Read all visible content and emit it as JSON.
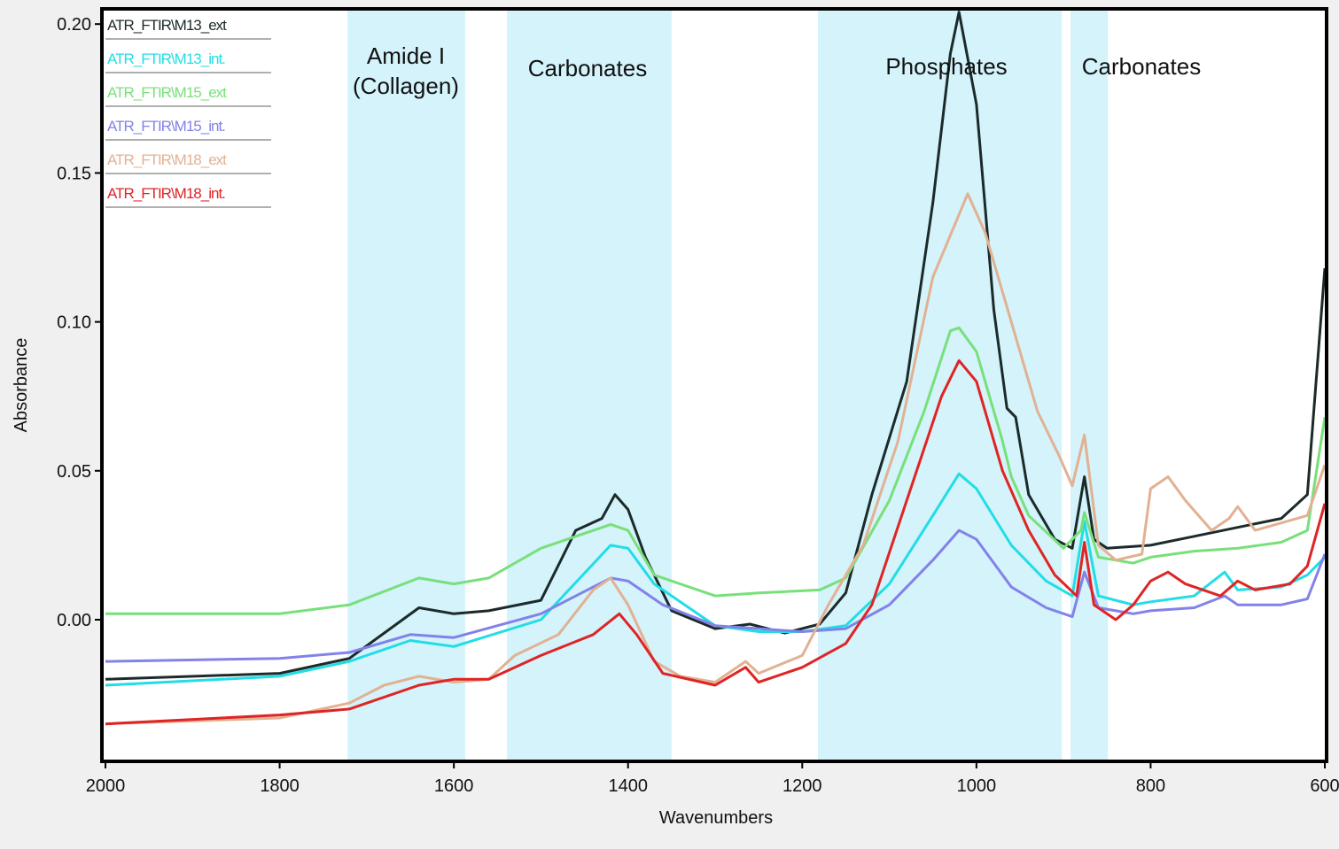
{
  "chart_data": {
    "type": "line",
    "title": "",
    "xlabel": "Wavenumbers",
    "ylabel": "Absorbance",
    "xlim": [
      2000,
      600
    ],
    "ylim": [
      -0.0476,
      0.205
    ],
    "xticks": [
      2000,
      1800,
      1600,
      1400,
      1200,
      1000,
      800,
      600
    ],
    "xtick_labels": [
      "2000",
      "1800",
      "1600",
      "1400",
      "1200",
      "1000",
      "800",
      "600"
    ],
    "yticks": [
      0.0,
      0.05,
      0.1,
      0.15,
      0.2
    ],
    "ytick_labels": [
      "0.00",
      "0.05",
      "0.10",
      "0.15",
      "0.20"
    ],
    "grid": false,
    "legend_position": "top-left",
    "bands": [
      {
        "label": "Amide I",
        "label2": "(Collagen)",
        "from": 1722,
        "to": 1587
      },
      {
        "label": "Carbonates",
        "label2": "",
        "from": 1539,
        "to": 1350
      },
      {
        "label": "Phosphates",
        "label2": "",
        "from": 1182,
        "to": 902
      },
      {
        "label": "Carbonates",
        "label2": "",
        "from": 892,
        "to": 849
      }
    ],
    "band_color": "#d4f3fb",
    "series": [
      {
        "name": "ATR_FTIR\\M13_ext",
        "color": "#1c2a2a",
        "x": [
          2000,
          1800,
          1720,
          1680,
          1640,
          1600,
          1560,
          1500,
          1460,
          1430,
          1415,
          1400,
          1380,
          1350,
          1300,
          1260,
          1220,
          1180,
          1150,
          1120,
          1080,
          1050,
          1030,
          1020,
          1000,
          980,
          965,
          955,
          940,
          910,
          890,
          876,
          865,
          850,
          800,
          750,
          700,
          650,
          620,
          600
        ],
        "y": [
          -0.02,
          -0.018,
          -0.013,
          -0.0045,
          0.004,
          0.002,
          0.003,
          0.0065,
          0.03,
          0.034,
          0.042,
          0.037,
          0.021,
          0.003,
          -0.003,
          -0.0015,
          -0.0045,
          -0.0015,
          0.009,
          0.042,
          0.08,
          0.14,
          0.19,
          0.204,
          0.173,
          0.104,
          0.071,
          0.068,
          0.042,
          0.027,
          0.024,
          0.048,
          0.027,
          0.024,
          0.025,
          0.028,
          0.031,
          0.034,
          0.042,
          0.118
        ]
      },
      {
        "name": "ATR_FTIR\\M13_int.",
        "color": "#22dde6",
        "x": [
          2000,
          1800,
          1720,
          1650,
          1600,
          1500,
          1420,
          1400,
          1370,
          1300,
          1250,
          1200,
          1150,
          1100,
          1050,
          1020,
          1000,
          960,
          920,
          890,
          876,
          860,
          820,
          800,
          750,
          715,
          700,
          650,
          620,
          600
        ],
        "y": [
          -0.022,
          -0.019,
          -0.014,
          -0.007,
          -0.009,
          0.0,
          0.025,
          0.024,
          0.012,
          -0.002,
          -0.004,
          -0.004,
          -0.002,
          0.012,
          0.035,
          0.049,
          0.044,
          0.025,
          0.013,
          0.008,
          0.033,
          0.008,
          0.005,
          0.006,
          0.008,
          0.016,
          0.01,
          0.011,
          0.015,
          0.021
        ]
      },
      {
        "name": "ATR_FTIR\\M15_ext",
        "color": "#78e07a",
        "x": [
          2000,
          1800,
          1720,
          1640,
          1600,
          1560,
          1500,
          1420,
          1400,
          1370,
          1300,
          1250,
          1180,
          1150,
          1100,
          1060,
          1030,
          1020,
          1000,
          970,
          960,
          940,
          900,
          880,
          876,
          860,
          820,
          800,
          750,
          700,
          650,
          620,
          600
        ],
        "y": [
          0.002,
          0.002,
          0.005,
          0.014,
          0.012,
          0.014,
          0.024,
          0.032,
          0.03,
          0.015,
          0.008,
          0.009,
          0.01,
          0.014,
          0.04,
          0.07,
          0.097,
          0.098,
          0.09,
          0.06,
          0.048,
          0.035,
          0.024,
          0.03,
          0.036,
          0.021,
          0.019,
          0.021,
          0.023,
          0.024,
          0.026,
          0.03,
          0.068
        ]
      },
      {
        "name": "ATR_FTIR\\M15_int.",
        "color": "#8282e8",
        "x": [
          2000,
          1800,
          1720,
          1650,
          1600,
          1500,
          1420,
          1400,
          1360,
          1300,
          1250,
          1200,
          1150,
          1100,
          1050,
          1020,
          1000,
          960,
          920,
          890,
          876,
          860,
          820,
          800,
          750,
          715,
          700,
          650,
          620,
          600
        ],
        "y": [
          -0.014,
          -0.013,
          -0.011,
          -0.005,
          -0.006,
          0.002,
          0.014,
          0.013,
          0.005,
          -0.002,
          -0.003,
          -0.004,
          -0.003,
          0.005,
          0.02,
          0.03,
          0.027,
          0.011,
          0.004,
          0.001,
          0.016,
          0.004,
          0.002,
          0.003,
          0.004,
          0.008,
          0.005,
          0.005,
          0.007,
          0.022
        ]
      },
      {
        "name": "ATR_FTIR\\M18_ext",
        "color": "#e2b192",
        "x": [
          2000,
          1800,
          1720,
          1680,
          1640,
          1600,
          1560,
          1530,
          1480,
          1440,
          1420,
          1400,
          1370,
          1340,
          1300,
          1265,
          1250,
          1200,
          1170,
          1130,
          1090,
          1050,
          1010,
          990,
          960,
          930,
          905,
          890,
          876,
          860,
          840,
          810,
          800,
          780,
          760,
          730,
          710,
          700,
          680,
          620,
          600
        ],
        "y": [
          -0.035,
          -0.033,
          -0.028,
          -0.022,
          -0.019,
          -0.021,
          -0.02,
          -0.012,
          -0.005,
          0.01,
          0.014,
          0.005,
          -0.014,
          -0.019,
          -0.021,
          -0.014,
          -0.018,
          -0.012,
          0.005,
          0.025,
          0.06,
          0.115,
          0.143,
          0.13,
          0.1,
          0.07,
          0.055,
          0.045,
          0.062,
          0.025,
          0.02,
          0.022,
          0.044,
          0.048,
          0.04,
          0.03,
          0.034,
          0.038,
          0.03,
          0.035,
          0.052
        ]
      },
      {
        "name": "ATR_FTIR\\M18_int.",
        "color": "#e02424",
        "x": [
          2000,
          1800,
          1720,
          1640,
          1600,
          1560,
          1500,
          1440,
          1410,
          1390,
          1360,
          1300,
          1265,
          1250,
          1200,
          1150,
          1120,
          1080,
          1040,
          1020,
          1000,
          970,
          940,
          910,
          885,
          876,
          865,
          840,
          820,
          800,
          780,
          760,
          720,
          700,
          680,
          640,
          620,
          600
        ],
        "y": [
          -0.035,
          -0.032,
          -0.03,
          -0.022,
          -0.02,
          -0.02,
          -0.012,
          -0.005,
          0.002,
          -0.005,
          -0.018,
          -0.022,
          -0.016,
          -0.021,
          -0.016,
          -0.008,
          0.005,
          0.04,
          0.075,
          0.087,
          0.08,
          0.05,
          0.03,
          0.015,
          0.008,
          0.026,
          0.005,
          0.0,
          0.005,
          0.013,
          0.016,
          0.012,
          0.008,
          0.013,
          0.01,
          0.012,
          0.018,
          0.039
        ]
      }
    ]
  }
}
